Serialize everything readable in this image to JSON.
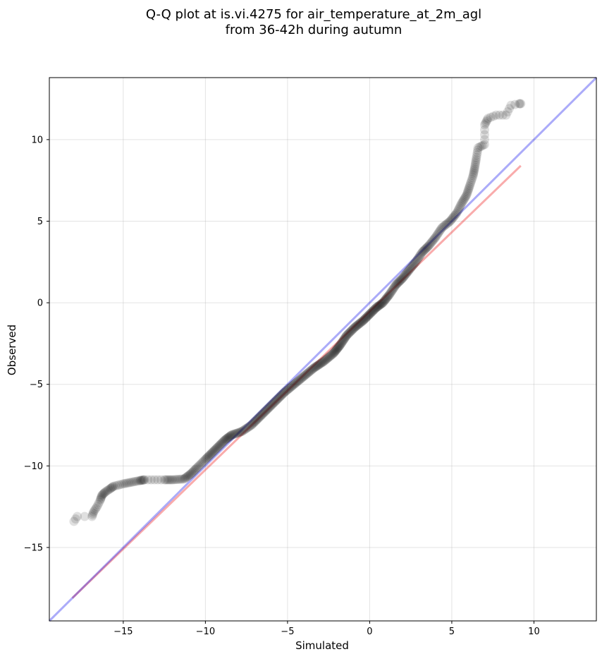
{
  "chart_data": {
    "type": "scatter",
    "title_line1": "Q-Q plot at is.vi.4275 for air_temperature_at_2m_agl",
    "title_line2": "from 36-42h during autumn",
    "xlabel": "Simulated",
    "ylabel": "Observed",
    "xlim": [
      -19.5,
      13.8
    ],
    "ylim": [
      -19.5,
      13.8
    ],
    "xticks": [
      -15,
      -10,
      -5,
      0,
      5,
      10
    ],
    "yticks": [
      -15,
      -10,
      -5,
      0,
      5,
      10
    ],
    "xtick_labels": [
      "−15",
      "−10",
      "−5",
      "0",
      "5",
      "10"
    ],
    "ytick_labels": [
      "−15",
      "−10",
      "−5",
      "0",
      "5",
      "10"
    ],
    "grid": true,
    "colors": {
      "points": "#000000",
      "identity_line": "#0000ee",
      "fit_line": "#ee0000"
    },
    "identity_line": {
      "x": [
        -19.5,
        13.8
      ],
      "y": [
        -19.5,
        13.8
      ]
    },
    "fit_line": {
      "x": [
        -18.1,
        9.2
      ],
      "y": [
        -18.1,
        8.4
      ]
    },
    "quantile_curve": [
      [
        -18.0,
        -13.4
      ],
      [
        -17.8,
        -13.1
      ],
      [
        -16.9,
        -13.1
      ],
      [
        -16.8,
        -12.8
      ],
      [
        -16.6,
        -12.5
      ],
      [
        -16.4,
        -12.1
      ],
      [
        -16.3,
        -11.8
      ],
      [
        -16.1,
        -11.6
      ],
      [
        -15.8,
        -11.4
      ],
      [
        -15.6,
        -11.25
      ],
      [
        -15.0,
        -11.1
      ],
      [
        -14.5,
        -11.0
      ],
      [
        -14.0,
        -10.9
      ],
      [
        -13.7,
        -10.85
      ],
      [
        -12.5,
        -10.85
      ],
      [
        -12.0,
        -10.85
      ],
      [
        -11.3,
        -10.8
      ],
      [
        -10.9,
        -10.5
      ],
      [
        -10.5,
        -10.1
      ],
      [
        -10.0,
        -9.6
      ],
      [
        -9.6,
        -9.2
      ],
      [
        -9.2,
        -8.8
      ],
      [
        -8.8,
        -8.4
      ],
      [
        -8.4,
        -8.1
      ],
      [
        -7.8,
        -7.9
      ],
      [
        -7.2,
        -7.5
      ],
      [
        -6.7,
        -7.0
      ],
      [
        -6.2,
        -6.5
      ],
      [
        -5.7,
        -6.0
      ],
      [
        -5.2,
        -5.5
      ],
      [
        -4.6,
        -5.0
      ],
      [
        -4.0,
        -4.5
      ],
      [
        -3.4,
        -4.0
      ],
      [
        -2.8,
        -3.6
      ],
      [
        -2.2,
        -3.1
      ],
      [
        -1.8,
        -2.6
      ],
      [
        -1.4,
        -2.0
      ],
      [
        -0.9,
        -1.5
      ],
      [
        -0.4,
        -1.1
      ],
      [
        0.0,
        -0.7
      ],
      [
        0.4,
        -0.3
      ],
      [
        0.8,
        0.0
      ],
      [
        1.2,
        0.5
      ],
      [
        1.6,
        1.1
      ],
      [
        2.0,
        1.5
      ],
      [
        2.4,
        2.0
      ],
      [
        2.8,
        2.5
      ],
      [
        3.2,
        3.1
      ],
      [
        3.6,
        3.5
      ],
      [
        4.0,
        4.0
      ],
      [
        4.4,
        4.6
      ],
      [
        4.9,
        5.0
      ],
      [
        5.3,
        5.5
      ],
      [
        5.6,
        6.1
      ],
      [
        5.9,
        6.6
      ],
      [
        6.1,
        7.2
      ],
      [
        6.3,
        7.8
      ],
      [
        6.4,
        8.3
      ],
      [
        6.5,
        8.9
      ],
      [
        6.6,
        9.5
      ],
      [
        7.0,
        9.7
      ],
      [
        7.0,
        10.9
      ],
      [
        7.2,
        11.3
      ],
      [
        7.7,
        11.5
      ],
      [
        8.3,
        11.5
      ],
      [
        8.6,
        12.1
      ],
      [
        9.1,
        12.2
      ],
      [
        9.2,
        12.2
      ]
    ]
  }
}
